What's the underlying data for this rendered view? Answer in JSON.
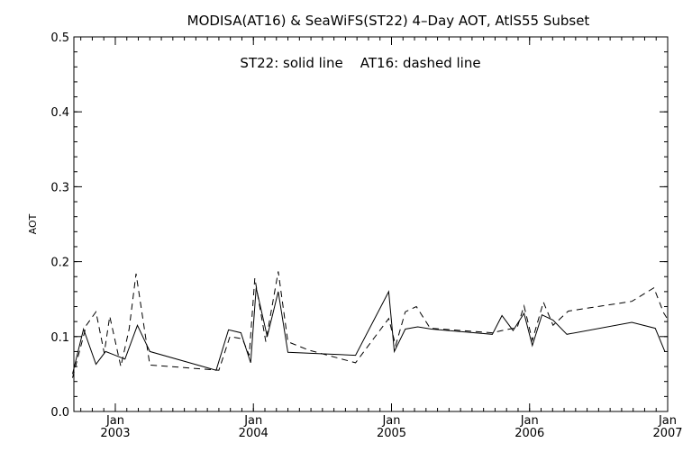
{
  "chart_data": {
    "type": "line",
    "title": "MODISA(AT16) & SeaWiFS(ST22) 4–Day AOT, AtlS55 Subset",
    "annotation": "ST22: solid line    AT16: dashed line",
    "xlabel": "",
    "ylabel": "AOT",
    "xlim": [
      2002.7,
      2007.0
    ],
    "ylim": [
      0.0,
      0.5
    ],
    "yticks": [
      0.0,
      0.1,
      0.2,
      0.3,
      0.4,
      0.5
    ],
    "ytick_labels": [
      "0.0",
      "0.1",
      "0.2",
      "0.3",
      "0.4",
      "0.5"
    ],
    "xticks": [
      {
        "x": 2003.0,
        "month": "Jan",
        "year": "2003"
      },
      {
        "x": 2004.0,
        "month": "Jan",
        "year": "2004"
      },
      {
        "x": 2005.0,
        "month": "Jan",
        "year": "2005"
      },
      {
        "x": 2006.0,
        "month": "Jan",
        "year": "2006"
      },
      {
        "x": 2007.0,
        "month": "Jan",
        "year": "2007"
      }
    ],
    "grid": false,
    "series": [
      {
        "name": "ST22",
        "style": "solid",
        "color": "#000000",
        "points": [
          [
            2002.69,
            0.05
          ],
          [
            2002.77,
            0.11
          ],
          [
            2002.86,
            0.063
          ],
          [
            2002.93,
            0.08
          ],
          [
            2003.07,
            0.07
          ],
          [
            2003.16,
            0.115
          ],
          [
            2003.25,
            0.08
          ],
          [
            2003.73,
            0.055
          ],
          [
            2003.82,
            0.109
          ],
          [
            2003.91,
            0.105
          ],
          [
            2003.98,
            0.065
          ],
          [
            2004.02,
            0.165
          ],
          [
            2004.1,
            0.1
          ],
          [
            2004.18,
            0.16
          ],
          [
            2004.25,
            0.079
          ],
          [
            2004.74,
            0.075
          ],
          [
            2004.98,
            0.16
          ],
          [
            2005.02,
            0.08
          ],
          [
            2005.1,
            0.11
          ],
          [
            2005.19,
            0.113
          ],
          [
            2005.29,
            0.11
          ],
          [
            2005.73,
            0.103
          ],
          [
            2005.8,
            0.128
          ],
          [
            2005.88,
            0.108
          ],
          [
            2005.96,
            0.131
          ],
          [
            2006.02,
            0.088
          ],
          [
            2006.09,
            0.129
          ],
          [
            2006.17,
            0.122
          ],
          [
            2006.27,
            0.103
          ],
          [
            2006.74,
            0.119
          ],
          [
            2006.91,
            0.111
          ],
          [
            2006.98,
            0.08
          ]
        ]
      },
      {
        "name": "AT16",
        "style": "dashed",
        "color": "#000000",
        "points": [
          [
            2002.69,
            0.045
          ],
          [
            2002.79,
            0.115
          ],
          [
            2002.86,
            0.133
          ],
          [
            2002.92,
            0.078
          ],
          [
            2002.96,
            0.127
          ],
          [
            2003.04,
            0.06
          ],
          [
            2003.1,
            0.11
          ],
          [
            2003.15,
            0.184
          ],
          [
            2003.25,
            0.062
          ],
          [
            2003.75,
            0.055
          ],
          [
            2003.83,
            0.1
          ],
          [
            2003.92,
            0.097
          ],
          [
            2003.97,
            0.075
          ],
          [
            2004.01,
            0.178
          ],
          [
            2004.09,
            0.093
          ],
          [
            2004.18,
            0.187
          ],
          [
            2004.25,
            0.093
          ],
          [
            2004.4,
            0.082
          ],
          [
            2004.74,
            0.065
          ],
          [
            2004.98,
            0.124
          ],
          [
            2005.03,
            0.088
          ],
          [
            2005.1,
            0.133
          ],
          [
            2005.18,
            0.14
          ],
          [
            2005.28,
            0.111
          ],
          [
            2005.73,
            0.105
          ],
          [
            2005.8,
            0.108
          ],
          [
            2005.91,
            0.112
          ],
          [
            2005.96,
            0.141
          ],
          [
            2006.02,
            0.095
          ],
          [
            2006.1,
            0.146
          ],
          [
            2006.17,
            0.115
          ],
          [
            2006.28,
            0.134
          ],
          [
            2006.74,
            0.147
          ],
          [
            2006.9,
            0.165
          ],
          [
            2006.97,
            0.132
          ],
          [
            2007.0,
            0.123
          ]
        ]
      }
    ]
  }
}
